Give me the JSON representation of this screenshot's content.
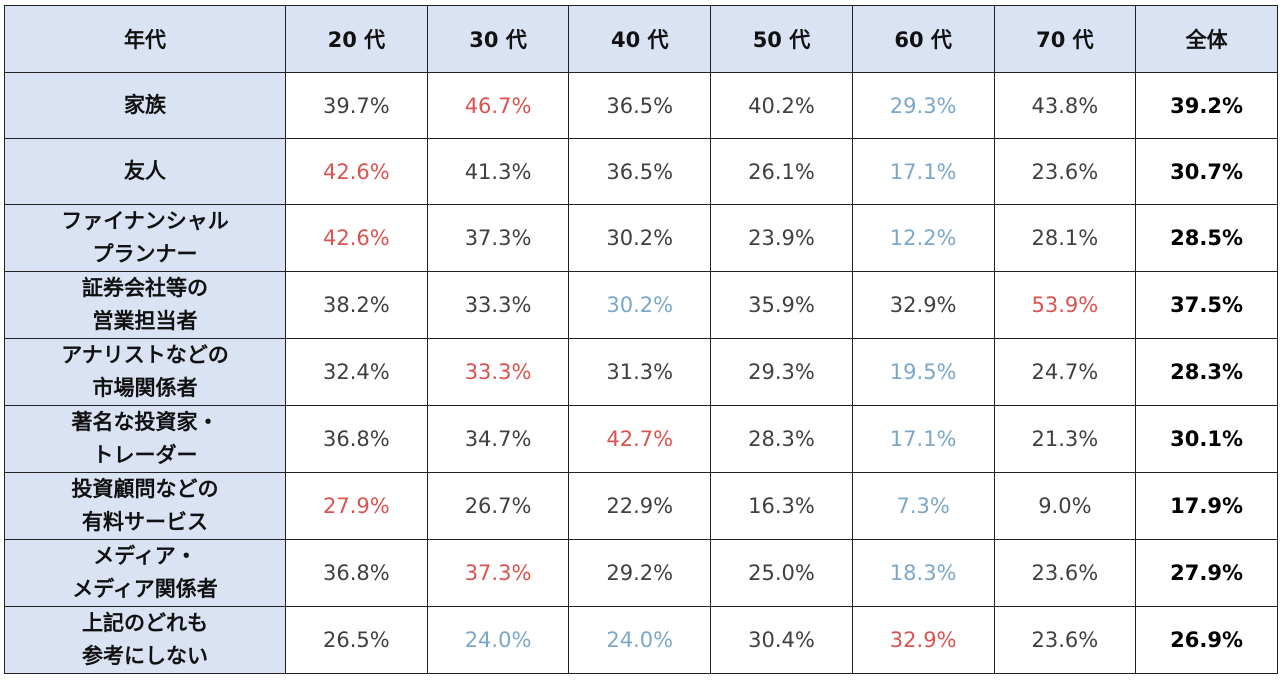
{
  "table": {
    "header": [
      "年代",
      "20 代",
      "30 代",
      "40 代",
      "50 代",
      "60 代",
      "70 代",
      "全体"
    ],
    "rows": [
      {
        "label": [
          "家族"
        ],
        "cells": [
          "39.7%",
          "46.7%",
          "36.5%",
          "40.2%",
          "29.3%",
          "43.8%",
          "39.2%"
        ],
        "colors": [
          "#404040",
          "#d9534f",
          "#404040",
          "#404040",
          "#7ba7c9",
          "#404040",
          "#000000"
        ]
      },
      {
        "label": [
          "友人"
        ],
        "cells": [
          "42.6%",
          "41.3%",
          "36.5%",
          "26.1%",
          "17.1%",
          "23.6%",
          "30.7%"
        ],
        "colors": [
          "#d9534f",
          "#404040",
          "#404040",
          "#404040",
          "#7ba7c9",
          "#404040",
          "#000000"
        ]
      },
      {
        "label": [
          "ファイナンシャル",
          "プランナー"
        ],
        "cells": [
          "42.6%",
          "37.3%",
          "30.2%",
          "23.9%",
          "12.2%",
          "28.1%",
          "28.5%"
        ],
        "colors": [
          "#d9534f",
          "#404040",
          "#404040",
          "#404040",
          "#7ba7c9",
          "#404040",
          "#000000"
        ]
      },
      {
        "label": [
          "証券会社等の",
          "営業担当者"
        ],
        "cells": [
          "38.2%",
          "33.3%",
          "30.2%",
          "35.9%",
          "32.9%",
          "53.9%",
          "37.5%"
        ],
        "colors": [
          "#404040",
          "#404040",
          "#7ba7c9",
          "#404040",
          "#404040",
          "#d9534f",
          "#000000"
        ]
      },
      {
        "label": [
          "アナリストなどの",
          "市場関係者"
        ],
        "cells": [
          "32.4%",
          "33.3%",
          "31.3%",
          "29.3%",
          "19.5%",
          "24.7%",
          "28.3%"
        ],
        "colors": [
          "#404040",
          "#d9534f",
          "#404040",
          "#404040",
          "#7ba7c9",
          "#404040",
          "#000000"
        ]
      },
      {
        "label": [
          "著名な投資家・",
          "トレーダー"
        ],
        "cells": [
          "36.8%",
          "34.7%",
          "42.7%",
          "28.3%",
          "17.1%",
          "21.3%",
          "30.1%"
        ],
        "colors": [
          "#404040",
          "#404040",
          "#d9534f",
          "#404040",
          "#7ba7c9",
          "#404040",
          "#000000"
        ]
      },
      {
        "label": [
          "投資顧問などの",
          "有料サービス"
        ],
        "cells": [
          "27.9%",
          "26.7%",
          "22.9%",
          "16.3%",
          "7.3%",
          "9.0%",
          "17.9%"
        ],
        "colors": [
          "#d9534f",
          "#404040",
          "#404040",
          "#404040",
          "#7ba7c9",
          "#404040",
          "#000000"
        ]
      },
      {
        "label": [
          "メディア・",
          "メディア関係者"
        ],
        "cells": [
          "36.8%",
          "37.3%",
          "29.2%",
          "25.0%",
          "18.3%",
          "23.6%",
          "27.9%"
        ],
        "colors": [
          "#404040",
          "#d9534f",
          "#404040",
          "#404040",
          "#7ba7c9",
          "#404040",
          "#000000"
        ]
      },
      {
        "label": [
          "上記のどれも",
          "参考にしない"
        ],
        "cells": [
          "26.5%",
          "24.0%",
          "24.0%",
          "30.4%",
          "32.9%",
          "23.6%",
          "26.9%"
        ],
        "colors": [
          "#404040",
          "#7ba7c9",
          "#7ba7c9",
          "#404040",
          "#d9534f",
          "#404040",
          "#000000"
        ]
      }
    ]
  }
}
